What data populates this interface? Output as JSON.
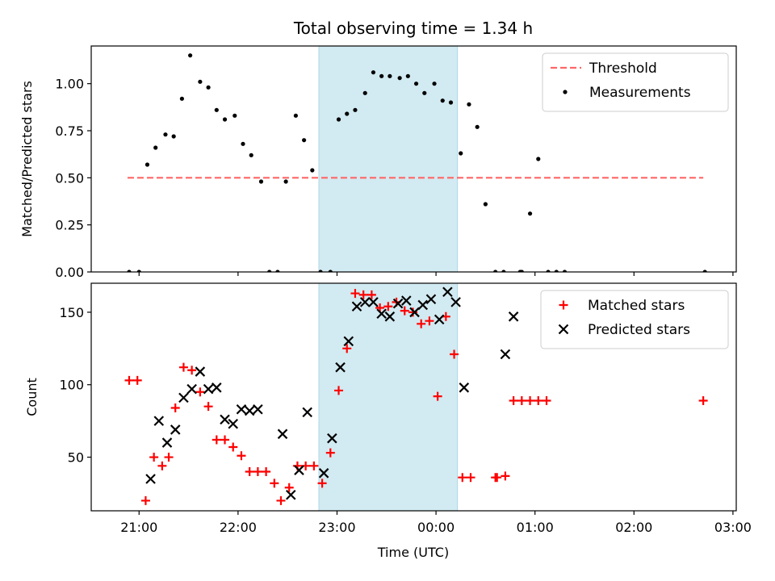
{
  "chart_data": {
    "type": "scatter",
    "title": "Total observing time = 1.34 h",
    "xlabel": "Time (UTC)",
    "x_ticks": [
      "21:00",
      "22:00",
      "23:00",
      "00:00",
      "01:00",
      "02:00",
      "03:00"
    ],
    "xlim": [
      "20:31",
      "03:02"
    ],
    "highlight_span": {
      "start": "22:49",
      "end": "00:13",
      "color": "#add8e6"
    },
    "panels": [
      {
        "ylabel": "Matched/Predicted stars",
        "ylim": [
          0,
          1.2
        ],
        "y_ticks": [
          "0.00",
          "0.25",
          "0.50",
          "0.75",
          "1.00"
        ],
        "y_tick_values": [
          0,
          0.25,
          0.5,
          0.75,
          1.0
        ],
        "legend": {
          "position": "upper right"
        },
        "threshold": {
          "name": "Threshold",
          "value": 0.5,
          "from": "20:53",
          "to": "02:42",
          "color": "#ff6666",
          "style": "dashed"
        },
        "series": [
          {
            "name": "Measurements",
            "color": "#000000",
            "marker": "dot",
            "points": [
              [
                "20:54",
                0.0
              ],
              [
                "21:00",
                0.0
              ],
              [
                "21:05",
                0.57
              ],
              [
                "21:10",
                0.66
              ],
              [
                "21:16",
                0.73
              ],
              [
                "21:21",
                0.72
              ],
              [
                "21:26",
                0.92
              ],
              [
                "21:31",
                1.15
              ],
              [
                "21:37",
                1.01
              ],
              [
                "21:42",
                0.98
              ],
              [
                "21:47",
                0.86
              ],
              [
                "21:52",
                0.81
              ],
              [
                "21:58",
                0.83
              ],
              [
                "22:03",
                0.68
              ],
              [
                "22:08",
                0.62
              ],
              [
                "22:14",
                0.48
              ],
              [
                "22:19",
                0.0
              ],
              [
                "22:24",
                0.0
              ],
              [
                "22:29",
                0.48
              ],
              [
                "22:35",
                0.83
              ],
              [
                "22:40",
                0.7
              ],
              [
                "22:45",
                0.54
              ],
              [
                "22:50",
                0.0
              ],
              [
                "22:56",
                0.0
              ],
              [
                "23:01",
                0.81
              ],
              [
                "23:06",
                0.84
              ],
              [
                "23:11",
                0.86
              ],
              [
                "23:17",
                0.95
              ],
              [
                "23:22",
                1.06
              ],
              [
                "23:27",
                1.04
              ],
              [
                "23:32",
                1.04
              ],
              [
                "23:38",
                1.03
              ],
              [
                "23:43",
                1.04
              ],
              [
                "23:48",
                1.0
              ],
              [
                "23:53",
                0.95
              ],
              [
                "23:59",
                1.0
              ],
              [
                "00:04",
                0.91
              ],
              [
                "00:09",
                0.9
              ],
              [
                "00:15",
                0.63
              ],
              [
                "00:20",
                0.89
              ],
              [
                "00:25",
                0.77
              ],
              [
                "00:30",
                0.36
              ],
              [
                "00:36",
                0.0
              ],
              [
                "00:41",
                0.0
              ],
              [
                "00:51",
                0.0
              ],
              [
                "00:52",
                0.0
              ],
              [
                "00:57",
                0.31
              ],
              [
                "01:02",
                0.6
              ],
              [
                "01:08",
                0.0
              ],
              [
                "01:13",
                0.0
              ],
              [
                "01:18",
                0.0
              ],
              [
                "02:43",
                0.0
              ]
            ]
          }
        ]
      },
      {
        "ylabel": "Count",
        "ylim": [
          13,
          170
        ],
        "y_ticks": [
          "50",
          "100",
          "150"
        ],
        "y_tick_values": [
          50,
          100,
          150
        ],
        "legend": {
          "position": "upper right"
        },
        "series": [
          {
            "name": "Matched stars",
            "color": "#ff0000",
            "marker": "plus",
            "points": [
              [
                "20:54",
                103
              ],
              [
                "20:59",
                103
              ],
              [
                "21:04",
                20
              ],
              [
                "21:09",
                50
              ],
              [
                "21:14",
                44
              ],
              [
                "21:18",
                50
              ],
              [
                "21:22",
                84
              ],
              [
                "21:27",
                112
              ],
              [
                "21:32",
                110
              ],
              [
                "21:37",
                95
              ],
              [
                "21:42",
                85
              ],
              [
                "21:47",
                62
              ],
              [
                "21:52",
                62
              ],
              [
                "21:57",
                57
              ],
              [
                "22:02",
                51
              ],
              [
                "22:07",
                40
              ],
              [
                "22:12",
                40
              ],
              [
                "22:17",
                40
              ],
              [
                "22:22",
                32
              ],
              [
                "22:26",
                20
              ],
              [
                "22:31",
                29
              ],
              [
                "22:36",
                44
              ],
              [
                "22:41",
                44
              ],
              [
                "22:46",
                44
              ],
              [
                "22:51",
                32
              ],
              [
                "22:56",
                53
              ],
              [
                "23:01",
                96
              ],
              [
                "23:06",
                125
              ],
              [
                "23:11",
                163
              ],
              [
                "23:16",
                162
              ],
              [
                "23:21",
                162
              ],
              [
                "23:26",
                153
              ],
              [
                "23:31",
                154
              ],
              [
                "23:36",
                157
              ],
              [
                "23:41",
                151
              ],
              [
                "23:46",
                150
              ],
              [
                "23:51",
                142
              ],
              [
                "23:56",
                144
              ],
              [
                "00:01",
                92
              ],
              [
                "00:06",
                147
              ],
              [
                "00:11",
                121
              ],
              [
                "00:16",
                36
              ],
              [
                "00:21",
                36
              ],
              [
                "00:36",
                36
              ],
              [
                "00:37",
                36
              ],
              [
                "00:42",
                37
              ],
              [
                "00:47",
                89
              ],
              [
                "00:52",
                89
              ],
              [
                "00:57",
                89
              ],
              [
                "01:02",
                89
              ],
              [
                "01:07",
                89
              ],
              [
                "02:42",
                89
              ]
            ]
          },
          {
            "name": "Predicted stars",
            "color": "#000000",
            "marker": "x",
            "points": [
              [
                "21:07",
                35
              ],
              [
                "21:12",
                75
              ],
              [
                "21:17",
                60
              ],
              [
                "21:22",
                69
              ],
              [
                "21:27",
                91
              ],
              [
                "21:32",
                97
              ],
              [
                "21:37",
                109
              ],
              [
                "21:42",
                97
              ],
              [
                "21:47",
                98
              ],
              [
                "21:52",
                76
              ],
              [
                "21:57",
                73
              ],
              [
                "22:02",
                83
              ],
              [
                "22:07",
                82
              ],
              [
                "22:12",
                83
              ],
              [
                "22:27",
                66
              ],
              [
                "22:32",
                24
              ],
              [
                "22:37",
                41
              ],
              [
                "22:42",
                81
              ],
              [
                "22:52",
                39
              ],
              [
                "22:57",
                63
              ],
              [
                "23:02",
                112
              ],
              [
                "23:07",
                130
              ],
              [
                "23:12",
                154
              ],
              [
                "23:17",
                157
              ],
              [
                "23:22",
                157
              ],
              [
                "23:27",
                149
              ],
              [
                "23:32",
                147
              ],
              [
                "23:37",
                156
              ],
              [
                "23:42",
                158
              ],
              [
                "23:47",
                150
              ],
              [
                "23:52",
                155
              ],
              [
                "23:57",
                159
              ],
              [
                "00:02",
                145
              ],
              [
                "00:07",
                164
              ],
              [
                "00:12",
                157
              ],
              [
                "00:17",
                98
              ],
              [
                "00:42",
                121
              ],
              [
                "00:47",
                147
              ]
            ]
          }
        ]
      }
    ]
  }
}
